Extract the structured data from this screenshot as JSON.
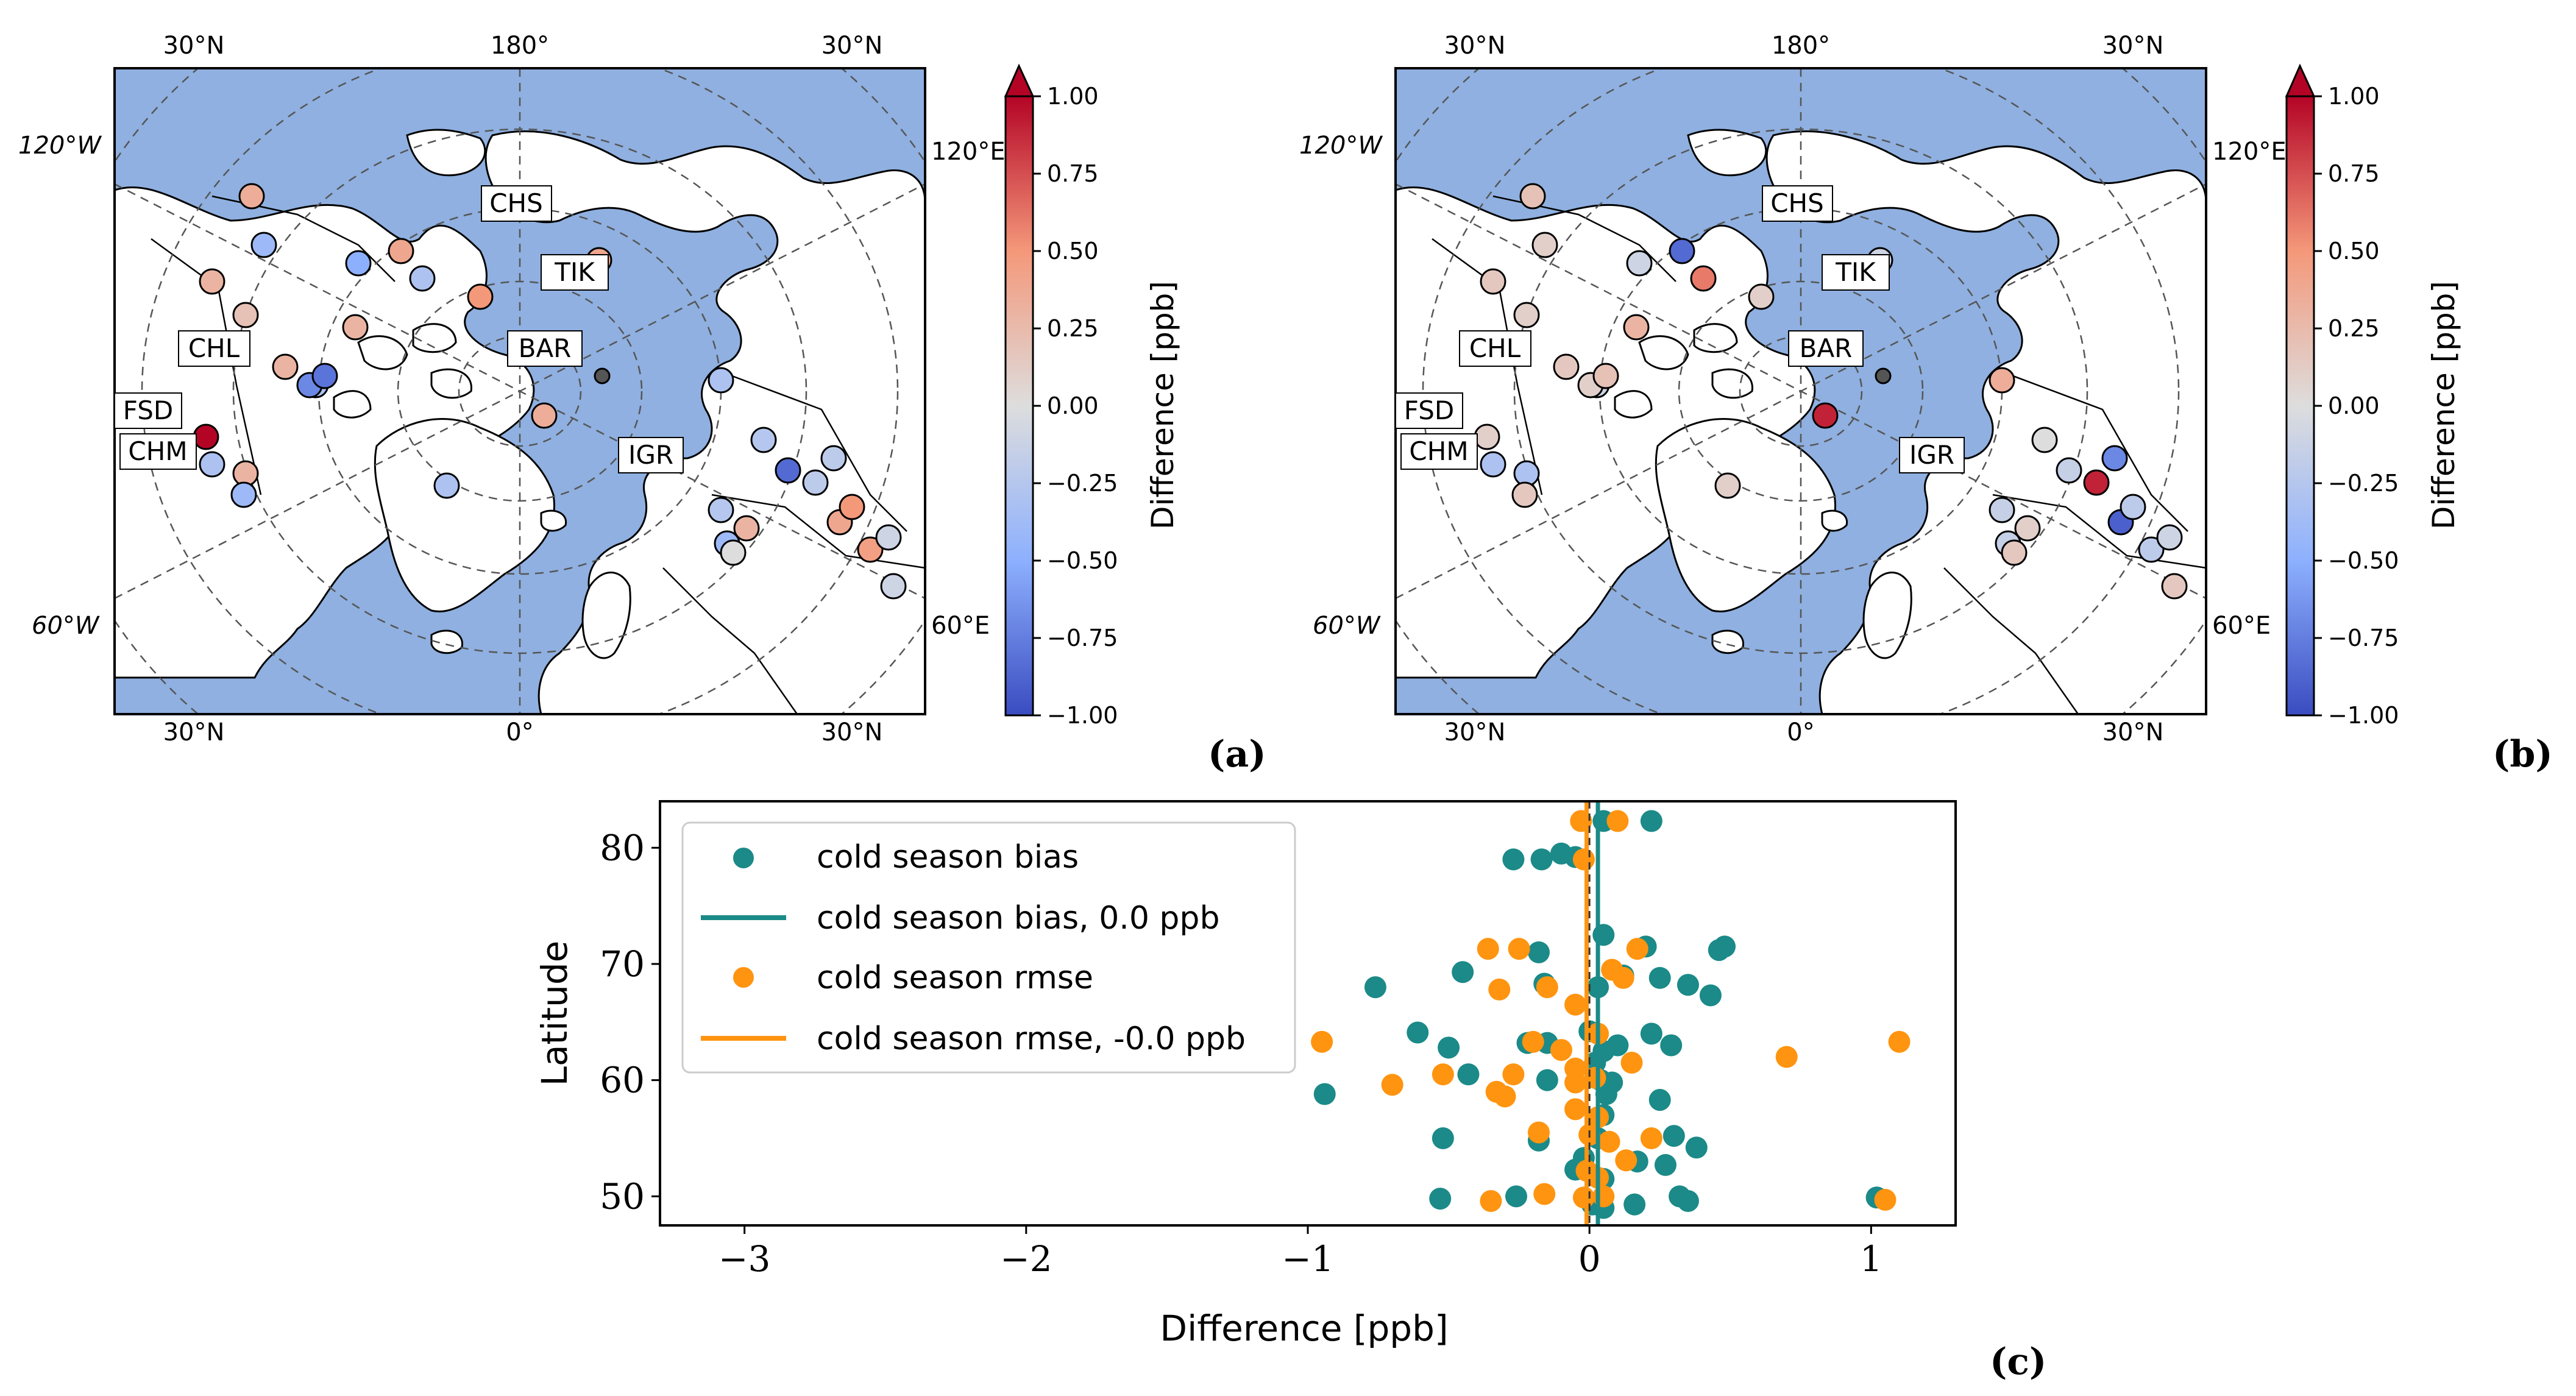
{
  "figure": {
    "panel_labels": [
      "(a)",
      "(b)",
      "(c)"
    ]
  },
  "colors": {
    "ocean": "#8FB0E0",
    "land": "#ffffff",
    "teal": "#1B8A88",
    "orange": "#FF9410",
    "cmap_low": "#3A4CC0",
    "cmap_mid": "#DDDDDD",
    "cmap_high": "#B40426"
  },
  "maps": {
    "lon_labels": {
      "top_left": "30°N",
      "top_center": "180°",
      "top_right": "30°N",
      "bottom_left": "30°N",
      "bottom_center": "0°",
      "bottom_right": "30°N",
      "left_upper": "120°W",
      "left_lower": "60°W",
      "right_upper": "120°E",
      "right_lower": "60°E"
    },
    "stations": [
      "CHS",
      "TIK",
      "BAR",
      "CHL",
      "FSD",
      "CHM",
      "IGR"
    ],
    "colorbar": {
      "label": "Difference [ppb]",
      "ticks": [
        "1.00",
        "0.75",
        "0.50",
        "0.25",
        "0.00",
        "−0.25",
        "−0.50",
        "−0.75",
        "−1.00"
      ],
      "range": [
        -1.0,
        1.0
      ]
    },
    "panel_a_values": [
      0.3,
      0.2,
      -0.4,
      0.3,
      -0.3,
      -0.5,
      0.4,
      -0.3,
      -0.7,
      0.35,
      0.3,
      -0.4,
      -0.8,
      0.3,
      0.5,
      1.0,
      -0.3,
      0.35,
      0.4,
      -0.3,
      -0.4,
      0.0,
      0.3,
      -0.25,
      -0.85,
      -0.2,
      0.4,
      -0.2,
      0.5,
      0.45,
      -0.1,
      -0.1,
      -0.3,
      -0.25
    ],
    "panel_b_values": [
      0.15,
      0.1,
      0.1,
      0.15,
      -0.1,
      -0.1,
      -0.85,
      0.6,
      0.1,
      0.2,
      -0.3,
      0.15,
      0.2,
      0.3,
      0.1,
      0.1,
      -0.3,
      0.9,
      -0.1,
      0.35,
      -0.15,
      0.15,
      0.1,
      0.0,
      -0.15,
      0.9,
      -0.9,
      -0.7,
      -0.2,
      -0.2,
      0.15,
      -0.1,
      0.1,
      -0.15
    ]
  },
  "chart_data": {
    "type": "scatter",
    "title": "",
    "xlabel": "Difference [ppb]",
    "ylabel": "Latitude",
    "xlim": [
      -3.3,
      1.3
    ],
    "ylim": [
      47.5,
      84
    ],
    "xticks": [
      -3,
      -2,
      -1,
      0,
      1
    ],
    "yticks": [
      50,
      60,
      70,
      80
    ],
    "xtick_labels": [
      "−3",
      "−2",
      "−1",
      "0",
      "1"
    ],
    "ytick_labels": [
      "50",
      "60",
      "70",
      "80"
    ],
    "legend": {
      "placement": "top-left",
      "entries": [
        "cold season bias",
        "cold season bias, 0.0 ppb",
        "cold season rmse",
        "cold season rmse, -0.0 ppb"
      ]
    },
    "series": [
      {
        "name": "cold season bias",
        "kind": "scatter",
        "x": [
          0.05,
          0.22,
          -0.27,
          -0.17,
          -0.1,
          -0.05,
          0.05,
          0.2,
          0.48,
          0.46,
          -0.18,
          -0.45,
          0.12,
          0.25,
          0.35,
          0.43,
          -0.76,
          -0.16,
          0.03,
          0.0,
          0.22,
          -0.61,
          -0.5,
          -0.22,
          -0.15,
          0.1,
          0.29,
          0.05,
          0.02,
          -0.43,
          -0.15,
          0.04,
          0.08,
          -0.94,
          0.06,
          0.25,
          0.05,
          -0.52,
          -0.18,
          0.03,
          0.3,
          0.38,
          -0.02,
          0.17,
          0.27,
          -0.05,
          0.05,
          -0.26,
          0.32,
          0.35,
          -0.53,
          0.16,
          0.01,
          0.05,
          1.02
        ],
        "y": [
          82.3,
          82.3,
          79.0,
          79.0,
          79.5,
          79.2,
          72.5,
          71.5,
          71.5,
          71.2,
          71.0,
          69.3,
          69.0,
          68.8,
          68.2,
          67.3,
          68.0,
          68.3,
          68.0,
          64.2,
          64.0,
          64.1,
          62.8,
          63.2,
          63.2,
          63.0,
          63.0,
          62.5,
          61.5,
          60.5,
          60.0,
          60.0,
          59.8,
          58.8,
          58.8,
          58.3,
          57.0,
          55.0,
          54.8,
          55.0,
          55.2,
          54.2,
          53.3,
          53.0,
          52.7,
          52.3,
          51.5,
          50.0,
          50.0,
          49.6,
          49.8,
          49.3,
          49.3,
          49.0,
          49.9
        ]
      },
      {
        "name": "cold season bias, 0.0 ppb",
        "kind": "vline",
        "x": 0.03
      },
      {
        "name": "cold season rmse",
        "kind": "scatter",
        "x": [
          -0.03,
          0.1,
          -0.02,
          -0.36,
          -0.25,
          0.17,
          0.08,
          0.12,
          -0.15,
          -0.32,
          -0.05,
          0.03,
          -0.2,
          -0.95,
          -0.1,
          1.1,
          0.7,
          0.15,
          -0.05,
          0.02,
          -0.52,
          -0.27,
          -0.05,
          -0.7,
          -0.33,
          -0.3,
          -0.05,
          0.03,
          -0.18,
          0.0,
          0.22,
          0.07,
          0.13,
          -0.01,
          0.03,
          -0.35,
          -0.16,
          -0.02,
          0.05,
          1.05
        ],
        "y": [
          82.3,
          82.3,
          79.0,
          71.3,
          71.3,
          71.3,
          69.5,
          68.8,
          68.0,
          67.8,
          66.5,
          64.0,
          63.3,
          63.3,
          62.6,
          63.3,
          62.0,
          61.5,
          61.0,
          60.2,
          60.5,
          60.5,
          59.8,
          59.6,
          59.0,
          58.6,
          57.5,
          56.8,
          55.5,
          55.3,
          55.0,
          54.7,
          53.1,
          52.2,
          51.6,
          49.6,
          50.2,
          49.9,
          50.0,
          49.7
        ]
      },
      {
        "name": "cold season rmse, -0.0 ppb",
        "kind": "vline",
        "x": -0.01
      }
    ]
  }
}
